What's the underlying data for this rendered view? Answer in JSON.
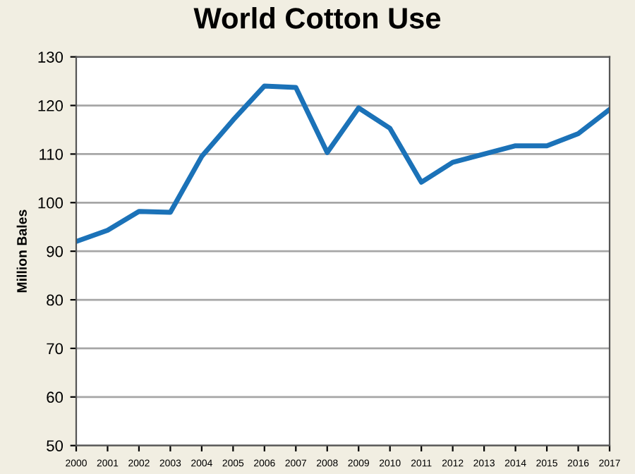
{
  "chart_data": {
    "type": "line",
    "title": "World Cotton Use",
    "ylabel": "Million Bales",
    "categories": [
      "2000",
      "2001",
      "2002",
      "2003",
      "2004",
      "2005",
      "2006",
      "2007",
      "2008",
      "2009",
      "2010",
      "2011",
      "2012",
      "2013",
      "2014",
      "2015",
      "2016",
      "2017"
    ],
    "series": [
      {
        "color": "#1b72b8",
        "values": [
          92,
          94.3,
          98.2,
          98,
          109.5,
          117,
          124,
          123.7,
          110.3,
          119.5,
          115.3,
          104.2,
          108.3,
          110,
          111.7,
          111.7,
          114.2,
          119.2
        ]
      }
    ],
    "ylim": [
      50,
      130
    ],
    "yticks": [
      50,
      60,
      70,
      80,
      90,
      100,
      110,
      120,
      130
    ],
    "grid": "y",
    "legend": false,
    "marker": "none",
    "line_style": "solid"
  }
}
